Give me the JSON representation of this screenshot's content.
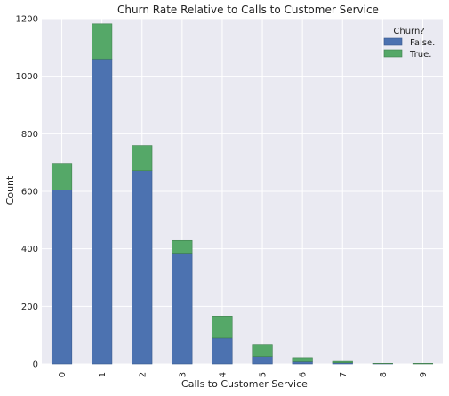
{
  "chart_data": {
    "type": "bar",
    "stacked": true,
    "title": "Churn Rate Relative to Calls to Customer Service",
    "xlabel": "Calls to Customer Service",
    "ylabel": "Count",
    "categories": [
      "0",
      "1",
      "2",
      "3",
      "4",
      "5",
      "6",
      "7",
      "8",
      "9"
    ],
    "series": [
      {
        "name": "False.",
        "values": [
          605,
          1060,
          672,
          385,
          90,
          26,
          8,
          4,
          1,
          0
        ],
        "color": "#4c72b0"
      },
      {
        "name": "True.",
        "values": [
          92,
          122,
          87,
          44,
          76,
          40,
          14,
          5,
          1,
          2
        ],
        "color": "#55a868"
      }
    ],
    "ylim": [
      0,
      1200
    ],
    "yticks": [
      0,
      200,
      400,
      600,
      800,
      1000,
      1200
    ],
    "grid": true,
    "legend": {
      "title": "Churn?",
      "placement": "top-right"
    },
    "background": "#eaeaf2"
  }
}
